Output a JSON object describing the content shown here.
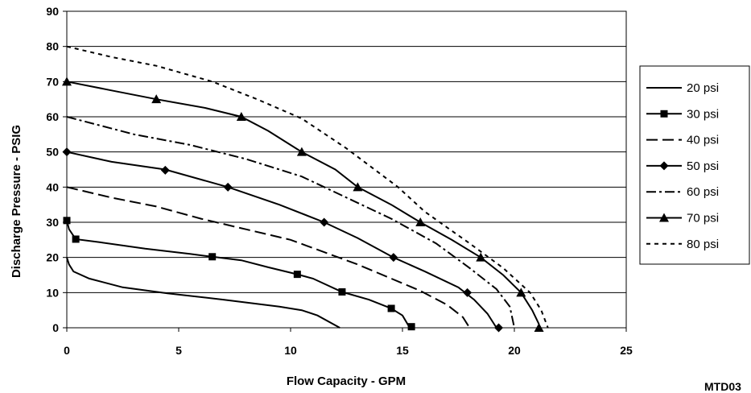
{
  "chart_data": {
    "type": "line",
    "title": "",
    "xlabel": "Flow Capacity - GPM",
    "ylabel": "Discharge Pressure - PSIG",
    "xlim": [
      0,
      25
    ],
    "ylim": [
      0,
      90
    ],
    "xticks": [
      0,
      5,
      10,
      15,
      20,
      25
    ],
    "yticks": [
      0,
      10,
      20,
      30,
      40,
      50,
      60,
      70,
      80,
      90
    ],
    "grid": "horizontal",
    "legend": "right",
    "annotation": "MTD03",
    "series": [
      {
        "name": "20 psi",
        "style": "solid",
        "marker": "none",
        "points": [
          [
            0,
            20
          ],
          [
            0.1,
            18
          ],
          [
            0.3,
            16
          ],
          [
            1,
            14
          ],
          [
            2.5,
            11.5
          ],
          [
            4.5,
            9.8
          ],
          [
            7,
            8
          ],
          [
            9.5,
            6
          ],
          [
            10.5,
            5
          ],
          [
            11.2,
            3.5
          ],
          [
            12.2,
            0
          ]
        ],
        "markers": []
      },
      {
        "name": "30 psi",
        "style": "solid",
        "marker": "square",
        "points": [
          [
            0,
            30.5
          ],
          [
            0.1,
            28
          ],
          [
            0.4,
            25.2
          ],
          [
            1.5,
            24.3
          ],
          [
            3.5,
            22.5
          ],
          [
            5.5,
            21
          ],
          [
            6.5,
            20.2
          ],
          [
            7.8,
            19.2
          ],
          [
            9,
            17.2
          ],
          [
            10.3,
            15.2
          ],
          [
            11,
            14
          ],
          [
            12.3,
            10.2
          ],
          [
            13.5,
            8
          ],
          [
            14.5,
            5.5
          ],
          [
            15,
            3.5
          ],
          [
            15.3,
            0.3
          ]
        ],
        "markers": [
          [
            0,
            30.5
          ],
          [
            0.4,
            25.2
          ],
          [
            6.5,
            20.2
          ],
          [
            10.3,
            15.2
          ],
          [
            12.3,
            10.2
          ],
          [
            14.5,
            5.5
          ],
          [
            15.4,
            0.3
          ]
        ]
      },
      {
        "name": "40 psi",
        "style": "dash",
        "marker": "none",
        "points": [
          [
            0,
            40
          ],
          [
            2,
            37
          ],
          [
            4,
            34.5
          ],
          [
            6,
            31
          ],
          [
            8,
            28
          ],
          [
            10,
            25
          ],
          [
            11.5,
            21.5
          ],
          [
            13,
            18
          ],
          [
            14.5,
            14
          ],
          [
            15.8,
            10.5
          ],
          [
            17,
            6.5
          ],
          [
            17.7,
            3
          ],
          [
            18,
            0
          ]
        ],
        "markers": []
      },
      {
        "name": "50 psi",
        "style": "solid",
        "marker": "diamond",
        "points": [
          [
            0,
            50
          ],
          [
            2,
            47.2
          ],
          [
            4.4,
            45
          ],
          [
            7.2,
            40
          ],
          [
            9.5,
            35
          ],
          [
            11.5,
            30
          ],
          [
            13,
            25.5
          ],
          [
            14.6,
            20
          ],
          [
            16,
            16
          ],
          [
            17.5,
            11.5
          ],
          [
            18.2,
            8
          ],
          [
            18.8,
            4
          ],
          [
            19.2,
            0
          ]
        ],
        "markers": [
          [
            0,
            50
          ],
          [
            4.4,
            44.8
          ],
          [
            7.2,
            40
          ],
          [
            11.5,
            30
          ],
          [
            14.6,
            20
          ],
          [
            17.9,
            10
          ],
          [
            19.3,
            0
          ]
        ]
      },
      {
        "name": "60 psi",
        "style": "dashdot",
        "marker": "none",
        "points": [
          [
            0,
            60
          ],
          [
            3,
            55
          ],
          [
            5.5,
            52
          ],
          [
            8,
            48
          ],
          [
            10.5,
            43
          ],
          [
            12.5,
            37
          ],
          [
            14.5,
            31
          ],
          [
            16.5,
            24
          ],
          [
            18,
            17
          ],
          [
            19.2,
            11
          ],
          [
            19.8,
            6
          ],
          [
            20,
            0
          ]
        ],
        "markers": []
      },
      {
        "name": "70 psi",
        "style": "solid",
        "marker": "triangle",
        "points": [
          [
            0,
            70
          ],
          [
            2,
            67.5
          ],
          [
            4,
            65
          ],
          [
            6.2,
            62.5
          ],
          [
            7.8,
            60
          ],
          [
            9,
            56
          ],
          [
            10.5,
            50
          ],
          [
            12,
            45
          ],
          [
            13,
            40
          ],
          [
            14.5,
            35
          ],
          [
            15.8,
            30
          ],
          [
            17.2,
            25
          ],
          [
            18.5,
            20
          ],
          [
            19.5,
            15
          ],
          [
            20.3,
            10
          ],
          [
            20.8,
            5
          ],
          [
            21.1,
            1
          ]
        ],
        "markers": [
          [
            0,
            70
          ],
          [
            4,
            65
          ],
          [
            7.8,
            60
          ],
          [
            10.5,
            50
          ],
          [
            13,
            40
          ],
          [
            15.8,
            30
          ],
          [
            18.5,
            20
          ],
          [
            20.3,
            10
          ],
          [
            21.1,
            0
          ]
        ]
      },
      {
        "name": "80 psi",
        "style": "shortdash",
        "marker": "none",
        "points": [
          [
            0,
            80
          ],
          [
            2,
            77
          ],
          [
            4,
            74.5
          ],
          [
            6.5,
            70
          ],
          [
            8.5,
            65
          ],
          [
            10.5,
            59.5
          ],
          [
            12.5,
            51
          ],
          [
            14.8,
            40
          ],
          [
            16,
            33
          ],
          [
            18,
            24
          ],
          [
            19.5,
            17
          ],
          [
            20.7,
            10
          ],
          [
            21.2,
            5
          ],
          [
            21.5,
            0
          ]
        ],
        "markers": []
      }
    ]
  }
}
